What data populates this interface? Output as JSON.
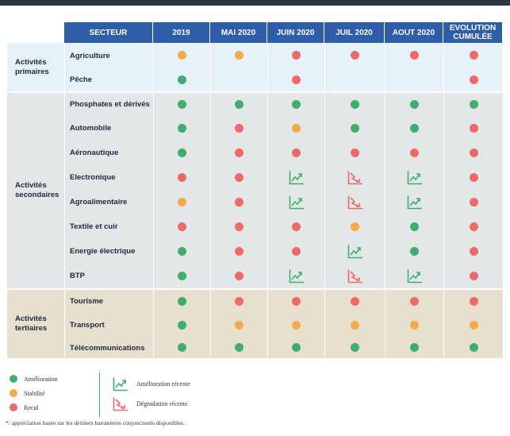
{
  "colors": {
    "green": "#3dae6e",
    "orange": "#f5a94a",
    "red": "#ee6a6a",
    "header": "#2f5ea8"
  },
  "header": {
    "sector": "SECTEUR",
    "periods": [
      "2019",
      "MAI 2020",
      "JUIN 2020",
      "JUIL 2020",
      "AOUT 2020",
      "EVOLUTION CUMULÉE"
    ]
  },
  "groups": [
    {
      "label": "Activités primaires",
      "rows": [
        {
          "sector": "Agriculture",
          "values": [
            "orange",
            "orange",
            "red",
            "red",
            "red",
            "red"
          ]
        },
        {
          "sector": "Pêche",
          "values": [
            "green",
            "",
            "red",
            "",
            "",
            "red"
          ]
        }
      ]
    },
    {
      "label": "Activités secondaires",
      "rows": [
        {
          "sector": "Phosphates et dérivés",
          "values": [
            "green",
            "green",
            "green",
            "green",
            "green",
            "green"
          ]
        },
        {
          "sector": "Automobile",
          "values": [
            "green",
            "red",
            "orange",
            "green",
            "green",
            "red"
          ]
        },
        {
          "sector": "Aéronautique",
          "values": [
            "green",
            "red",
            "red",
            "red",
            "red",
            "red"
          ]
        },
        {
          "sector": "Electronique",
          "values": [
            "red",
            "red",
            "up",
            "down",
            "up",
            "red"
          ]
        },
        {
          "sector": "Agroalimentaire",
          "values": [
            "orange",
            "red",
            "up",
            "down",
            "up",
            "red"
          ]
        },
        {
          "sector": "Textile et cuir",
          "values": [
            "red",
            "red",
            "red",
            "orange",
            "green",
            "red"
          ]
        },
        {
          "sector": "Energie électrique",
          "values": [
            "green",
            "red",
            "red",
            "up",
            "green",
            "red"
          ]
        },
        {
          "sector": "BTP",
          "values": [
            "green",
            "red",
            "up",
            "down",
            "up",
            "red"
          ]
        }
      ]
    },
    {
      "label": "Activités tertiaires",
      "rows": [
        {
          "sector": "Tourisme",
          "values": [
            "green",
            "red",
            "red",
            "red",
            "red",
            "red"
          ]
        },
        {
          "sector": "Transport",
          "values": [
            "green",
            "orange",
            "orange",
            "orange",
            "orange",
            "orange"
          ]
        },
        {
          "sector": "Télécommunications",
          "values": [
            "green",
            "green",
            "green",
            "green",
            "green",
            "green"
          ]
        }
      ]
    }
  ],
  "legend": {
    "amelioration": "Amélioration",
    "stabilite": "Stabilité",
    "recul": "Recul",
    "amelioration_recente": "Amélioration récente",
    "degradation_recente": "Dégradation récente"
  },
  "footnote": "*: appréciation basée sur les derniers baromètres conjoncturels disponibles."
}
